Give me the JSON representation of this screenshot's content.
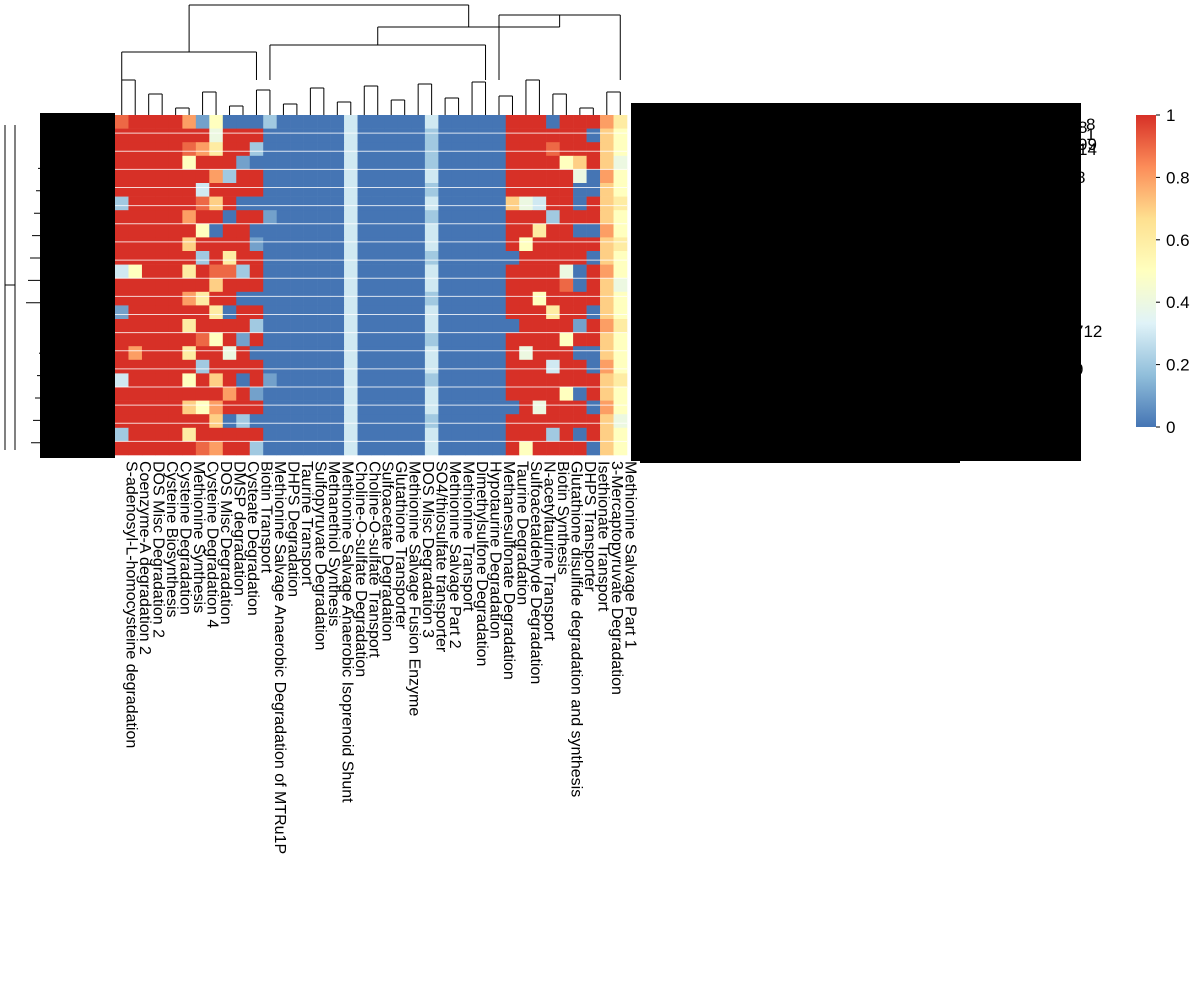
{
  "chart_data": {
    "type": "heatmap",
    "title": "",
    "colorbar": {
      "ticks": [
        "1",
        "0.8",
        "0.6",
        "0.4",
        "0.2",
        "0"
      ],
      "range": [
        0,
        1
      ],
      "colors": [
        "#4575b4",
        "#91bfdb",
        "#e0f3f8",
        "#ffffbf",
        "#fee090",
        "#fc8d59",
        "#d73027"
      ]
    },
    "columns": [
      "S-adenosyl-L-homocysteine degradation",
      "Coenzyme-A degradation 2",
      "DOS Misc Degradation 2",
      "Cysteine Biosynthesis",
      "Cysteine Degradation",
      "Methionine Synthesis",
      "Cysteine Degradation 4",
      "DOS Misc Degradation",
      "DMSP degradation",
      "Cysteate Degradation",
      "Biotin Transport",
      "Methionine Salvage Anaerobic Degradation of MTRu1P",
      "DHPS Degradation",
      "Taurine Transport",
      "Sulfopyruvate Degradation",
      "Methanethiol Synthesis",
      "Methionine Salvage Anaerobic Isoprenoid Shunt",
      "Choline-O-sulfate Degradation",
      "Choline-O-sulfate Transport",
      "Sulfoacetate Degradation",
      "Glutathione Transporter",
      "Methionine Salvage Fusion Enzyme",
      "DOS Misc Degradation 3",
      "SO4/thiosulfate transporter",
      "Methionine Salvage Part 2",
      "Methionine Transport",
      "Dimethylsulfone Degradation",
      "Hypotaurine Degradation",
      "Methanesulfonate Degradation",
      "Taurine Degradation",
      "Sulfoacetaldehyde Degradation",
      "N-acetyltaurine Transport",
      "Biotin Synthesis",
      "Glutathione disulfide degradation and synthesis",
      "DHPS Transporter",
      "Isethionate Transport",
      "3-Mercaptopyruvate Degradation",
      "Methionine Salvage Part 1"
    ],
    "row_label_fragments": [
      "8",
      "1",
      "8",
      "99",
      "14",
      "8",
      "712",
      "9"
    ],
    "rows": [
      [
        0.9,
        1,
        1,
        1,
        1,
        0.8,
        0.1,
        0.5,
        0,
        0,
        0,
        0.2,
        0,
        0,
        0,
        0,
        0,
        0.3,
        0,
        0,
        0,
        0,
        0,
        0.3,
        0,
        0,
        0,
        0,
        0,
        1,
        1,
        1,
        0,
        1,
        1,
        1,
        0.8,
        0.6
      ],
      [
        1,
        1,
        1,
        1,
        1,
        1,
        1,
        0.4,
        1,
        1,
        1,
        0,
        0,
        0,
        0,
        0,
        0,
        0.3,
        0,
        0,
        0,
        0,
        0,
        0.2,
        0,
        0,
        0,
        0,
        0,
        1,
        1,
        1,
        1,
        1,
        1,
        0,
        0.7,
        0.5
      ],
      [
        1,
        1,
        1,
        1,
        1,
        0.9,
        0.8,
        0.6,
        1,
        1,
        0.2,
        0,
        0,
        0,
        0,
        0,
        0,
        0.3,
        0,
        0,
        0,
        0,
        0,
        0.2,
        0,
        0,
        0,
        0,
        0,
        1,
        1,
        1,
        0.9,
        1,
        1,
        1,
        0.7,
        0.5
      ],
      [
        1,
        1,
        1,
        1,
        1,
        0.5,
        1,
        1,
        1,
        0.1,
        0,
        0,
        0,
        0,
        0,
        0,
        0,
        0.3,
        0,
        0,
        0,
        0,
        0,
        0.2,
        0,
        0,
        0,
        0,
        0,
        1,
        1,
        1,
        1,
        0.5,
        0.7,
        1,
        0.7,
        0.4
      ],
      [
        1,
        1,
        1,
        1,
        1,
        1,
        1,
        0.8,
        0.2,
        1,
        1,
        0,
        0,
        0,
        0,
        0,
        0,
        0.3,
        0,
        0,
        0,
        0,
        0,
        0.3,
        0,
        0,
        0,
        0,
        0,
        1,
        1,
        1,
        1,
        1,
        0.4,
        0,
        0.8,
        0.5
      ],
      [
        1,
        1,
        1,
        1,
        1,
        1,
        0.3,
        1,
        1,
        1,
        1,
        0,
        0,
        0,
        0,
        0,
        0,
        0.3,
        0,
        0,
        0,
        0,
        0,
        0.2,
        0,
        0,
        0,
        0,
        0,
        1,
        1,
        1,
        1,
        1,
        0,
        0,
        0.7,
        0.5
      ],
      [
        0.2,
        1,
        1,
        1,
        1,
        1,
        0.9,
        0.7,
        1,
        0,
        0,
        0,
        0,
        0,
        0,
        0,
        0,
        0.3,
        0,
        0,
        0,
        0,
        0,
        0.3,
        0,
        0,
        0,
        0,
        0,
        0.7,
        0.4,
        0.3,
        1,
        1,
        0,
        1,
        0.7,
        0.6
      ],
      [
        1,
        1,
        1,
        1,
        1,
        0.8,
        1,
        1,
        0,
        1,
        1,
        0.1,
        0,
        0,
        0,
        0,
        0,
        0.3,
        0,
        0,
        0,
        0,
        0,
        0.2,
        0,
        0,
        0,
        0,
        0,
        1,
        1,
        1,
        0.2,
        1,
        1,
        1,
        0.7,
        0.5
      ],
      [
        1,
        1,
        1,
        1,
        1,
        1,
        0.5,
        0,
        1,
        1,
        0,
        0,
        0,
        0,
        0,
        0,
        0,
        0.3,
        0,
        0,
        0,
        0,
        0,
        0.3,
        0,
        0,
        0,
        0,
        0,
        1,
        1,
        0.6,
        1,
        1,
        0,
        0,
        0.8,
        0.5
      ],
      [
        1,
        1,
        1,
        1,
        1,
        0.7,
        1,
        1,
        1,
        1,
        0.1,
        0,
        0,
        0,
        0,
        0,
        0,
        0.3,
        0,
        0,
        0,
        0,
        0,
        0.3,
        0,
        0,
        0,
        0,
        0,
        1,
        0.5,
        1,
        1,
        1,
        1,
        1,
        0.7,
        0.6
      ],
      [
        1,
        1,
        1,
        1,
        1,
        1,
        0.2,
        1,
        0.6,
        1,
        1,
        0,
        0,
        0,
        0,
        0,
        0,
        0.3,
        0,
        0,
        0,
        0,
        0,
        0.2,
        0,
        0,
        0,
        0,
        0,
        0,
        1,
        1,
        1,
        1,
        1,
        0,
        0.7,
        0.5
      ],
      [
        0.3,
        0.5,
        1,
        1,
        1,
        0.6,
        1,
        0.9,
        0.9,
        0.2,
        1,
        0,
        0,
        0,
        0,
        0,
        0,
        0.3,
        0,
        0,
        0,
        0,
        0,
        0.3,
        0,
        0,
        0,
        0,
        0,
        1,
        1,
        1,
        1,
        0.4,
        0,
        1,
        0.8,
        0.5
      ],
      [
        1,
        1,
        1,
        1,
        1,
        1,
        1,
        0.7,
        1,
        1,
        1,
        0,
        0,
        0,
        0,
        0,
        0,
        0.3,
        0,
        0,
        0,
        0,
        0,
        0.3,
        0,
        0,
        0,
        0,
        0,
        1,
        1,
        1,
        1,
        0.9,
        0,
        1,
        0.7,
        0.4
      ],
      [
        1,
        1,
        1,
        1,
        1,
        0.8,
        0.6,
        1,
        1,
        0,
        0,
        0,
        0,
        0,
        0,
        0,
        0,
        0.3,
        0,
        0,
        0,
        0,
        0,
        0.2,
        0,
        0,
        0,
        0,
        0,
        1,
        1,
        0.5,
        1,
        1,
        1,
        1,
        0.7,
        0.5
      ],
      [
        0.1,
        1,
        1,
        1,
        1,
        1,
        1,
        0.6,
        0,
        1,
        1,
        0,
        0,
        0,
        0,
        0,
        0,
        0.3,
        0,
        0,
        0,
        0,
        0,
        0.3,
        0,
        0,
        0,
        0,
        0,
        1,
        1,
        1,
        0.6,
        1,
        1,
        0,
        0.7,
        0.5
      ],
      [
        1,
        1,
        1,
        1,
        1,
        0.6,
        1,
        1,
        1,
        1,
        0.2,
        0,
        0,
        0,
        0,
        0,
        0,
        0.3,
        0,
        0,
        0,
        0,
        0,
        0.3,
        0,
        0,
        0,
        0,
        0,
        0,
        1,
        1,
        1,
        1,
        0.1,
        1,
        0.8,
        0.6
      ],
      [
        1,
        1,
        1,
        1,
        1,
        1,
        0.9,
        0.5,
        1,
        0.1,
        1,
        0,
        0,
        0,
        0,
        0,
        0,
        0.3,
        0,
        0,
        0,
        0,
        0,
        0.2,
        0,
        0,
        0,
        0,
        0,
        1,
        1,
        1,
        1,
        0.5,
        1,
        1,
        0.7,
        0.5
      ],
      [
        1,
        0.8,
        1,
        1,
        1,
        0.6,
        1,
        1,
        0.4,
        1,
        0,
        0,
        0,
        0,
        0,
        0,
        0,
        0.3,
        0,
        0,
        0,
        0,
        0,
        0.3,
        0,
        0,
        0,
        0,
        0,
        1,
        0.4,
        1,
        1,
        1,
        0,
        0,
        0.7,
        0.5
      ],
      [
        1,
        1,
        1,
        1,
        1,
        1,
        0.2,
        1,
        1,
        1,
        1,
        0,
        0,
        0,
        0,
        0,
        0,
        0.3,
        0,
        0,
        0,
        0,
        0,
        0.3,
        0,
        0,
        0,
        0,
        0,
        1,
        1,
        1,
        0.3,
        1,
        1,
        0,
        0.8,
        0.5
      ],
      [
        0.3,
        1,
        1,
        1,
        1,
        0.5,
        1,
        0.7,
        1,
        0,
        1,
        0.1,
        0,
        0,
        0,
        0,
        0,
        0.3,
        0,
        0,
        0,
        0,
        0,
        0.2,
        0,
        0,
        0,
        0,
        0,
        1,
        1,
        1,
        1,
        1,
        1,
        1,
        0.7,
        0.6
      ],
      [
        1,
        1,
        1,
        1,
        1,
        1,
        1,
        1,
        0.8,
        1,
        0.1,
        0,
        0,
        0,
        0,
        0,
        0,
        0.3,
        0,
        0,
        0,
        0,
        0,
        0.3,
        0,
        0,
        0,
        0,
        0,
        1,
        1,
        1,
        1,
        0.5,
        0,
        1,
        0.7,
        0.5
      ],
      [
        1,
        1,
        1,
        1,
        1,
        0.7,
        0.5,
        0.8,
        1,
        1,
        1,
        0,
        0,
        0,
        0,
        0,
        0,
        0.3,
        0,
        0,
        0,
        0,
        0,
        0.3,
        0,
        0,
        0,
        0,
        0,
        0,
        1,
        0.4,
        1,
        1,
        1,
        0,
        0.8,
        0.5
      ],
      [
        1,
        1,
        1,
        1,
        1,
        1,
        1,
        0.7,
        0,
        0.2,
        0,
        0,
        0,
        0,
        0,
        0,
        0,
        0.3,
        0,
        0,
        0,
        0,
        0,
        0.2,
        0,
        0,
        0,
        0,
        0,
        1,
        1,
        1,
        1,
        1,
        1,
        1,
        0.7,
        0.4
      ],
      [
        0.2,
        1,
        1,
        1,
        1,
        0.6,
        1,
        1,
        1,
        1,
        1,
        0,
        0,
        0,
        0,
        0,
        0,
        0.3,
        0,
        0,
        0,
        0,
        0,
        0.3,
        0,
        0,
        0,
        0,
        0,
        1,
        1,
        1,
        0.2,
        1,
        0,
        1,
        0.7,
        0.5
      ],
      [
        1,
        1,
        1,
        1,
        1,
        1,
        0.9,
        0.8,
        1,
        1,
        0.2,
        0,
        0,
        0,
        0,
        0,
        0,
        0.3,
        0,
        0,
        0,
        0,
        0,
        0.3,
        0,
        0,
        0,
        0,
        0,
        1,
        0.5,
        1,
        1,
        1,
        1,
        0,
        0.7,
        0.5
      ]
    ]
  }
}
